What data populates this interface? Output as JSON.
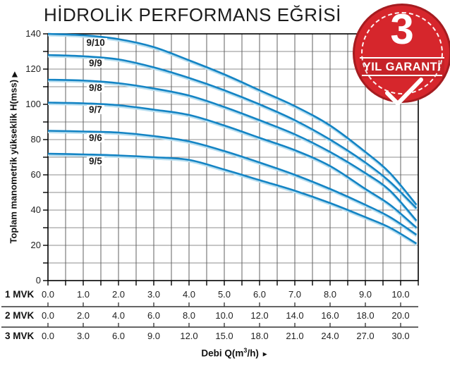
{
  "title": "HİDROLİK PERFORMANS EĞRİSİ",
  "badge": {
    "number": "3",
    "label": "YIL GARANTİ",
    "checkmark_icon": "check"
  },
  "colors": {
    "curve": "#1484c4",
    "curve_shadow": "#b7def0",
    "grid_vertical": "#606060",
    "grid_horizontal": "#8e8e8e",
    "axis": "#000000",
    "badge_red": "#d6262c",
    "badge_rim": "#a51c20"
  },
  "chart_data": {
    "type": "line",
    "title": "HİDROLİK PERFORMANS EĞRİSİ",
    "ylabel": "Toplam manometrik yükseklik H(mss)",
    "y_label_arrow": "▶",
    "xlabel": "Debi Q(m³/h)",
    "x_label_prefix": "Debi Q(m",
    "x_label_sup": "3",
    "x_label_suffix": "/h) ",
    "x_label_arrow": "►",
    "ylim": [
      0,
      140
    ],
    "xlim": [
      0,
      10.5
    ],
    "grid": true,
    "y_tick_labels": [
      140,
      120,
      100,
      80,
      60,
      40,
      20,
      0
    ],
    "y_minor_step": 10,
    "x_minor_step": 0.5,
    "legend_position": "labels-on-curves",
    "series": [
      {
        "name": "9/10",
        "points": [
          [
            0,
            140
          ],
          [
            1,
            139.2
          ],
          [
            2,
            137
          ],
          [
            3,
            132.5
          ],
          [
            4,
            125
          ],
          [
            5,
            117
          ],
          [
            6,
            108
          ],
          [
            7,
            99
          ],
          [
            8,
            88
          ],
          [
            9,
            73
          ],
          [
            9.7,
            61
          ],
          [
            10.45,
            43
          ]
        ]
      },
      {
        "name": "9/9",
        "points": [
          [
            0,
            128
          ],
          [
            1,
            127.3
          ],
          [
            2,
            125.5
          ],
          [
            3,
            121
          ],
          [
            4,
            115
          ],
          [
            5,
            108
          ],
          [
            6,
            100
          ],
          [
            7,
            91
          ],
          [
            8,
            80
          ],
          [
            9,
            67
          ],
          [
            9.7,
            56
          ],
          [
            10.45,
            41
          ]
        ]
      },
      {
        "name": "9/8",
        "points": [
          [
            0,
            114
          ],
          [
            1,
            113.5
          ],
          [
            2,
            112
          ],
          [
            3,
            109
          ],
          [
            4,
            105
          ],
          [
            5,
            98.5
          ],
          [
            6,
            91
          ],
          [
            7,
            83
          ],
          [
            8,
            73
          ],
          [
            9,
            61
          ],
          [
            9.7,
            51
          ],
          [
            10.45,
            34
          ]
        ]
      },
      {
        "name": "9/7",
        "points": [
          [
            0,
            101
          ],
          [
            1,
            100.6
          ],
          [
            2,
            99.5
          ],
          [
            3,
            97
          ],
          [
            4,
            94
          ],
          [
            5,
            88
          ],
          [
            6,
            81
          ],
          [
            7,
            74
          ],
          [
            8,
            65
          ],
          [
            9,
            52
          ],
          [
            9.7,
            43
          ],
          [
            10.45,
            30
          ]
        ]
      },
      {
        "name": "9/6",
        "points": [
          [
            0,
            85
          ],
          [
            1,
            84.6
          ],
          [
            2,
            84
          ],
          [
            3,
            82
          ],
          [
            4,
            79
          ],
          [
            5,
            73.5
          ],
          [
            6,
            67
          ],
          [
            7,
            60
          ],
          [
            8,
            52
          ],
          [
            9,
            43
          ],
          [
            9.7,
            36
          ],
          [
            10.45,
            26
          ]
        ]
      },
      {
        "name": "9/5",
        "points": [
          [
            0,
            72
          ],
          [
            1,
            71.6
          ],
          [
            2,
            71
          ],
          [
            3,
            70
          ],
          [
            4,
            68.5
          ],
          [
            5,
            63
          ],
          [
            6,
            57
          ],
          [
            7,
            51
          ],
          [
            8,
            44
          ],
          [
            9,
            36
          ],
          [
            9.7,
            30
          ],
          [
            10.45,
            21
          ]
        ]
      }
    ],
    "x_axis_rows": [
      {
        "label": "1 MVK",
        "values": [
          "0.0",
          "1.0",
          "2.0",
          "3.0",
          "4.0",
          "5.0",
          "6.0",
          "7.0",
          "8.0",
          "9.0",
          "10.0"
        ]
      },
      {
        "label": "2 MVK",
        "values": [
          "0.0",
          "2.0",
          "4.0",
          "6.0",
          "8.0",
          "10.0",
          "12.0",
          "14.0",
          "16.0",
          "18.0",
          "20.0"
        ]
      },
      {
        "label": "3 MVK",
        "values": [
          "0.0",
          "3.0",
          "6.0",
          "9.0",
          "12.0",
          "15.0",
          "18.0",
          "21.0",
          "24.0",
          "27.0",
          "30.0"
        ]
      }
    ]
  }
}
